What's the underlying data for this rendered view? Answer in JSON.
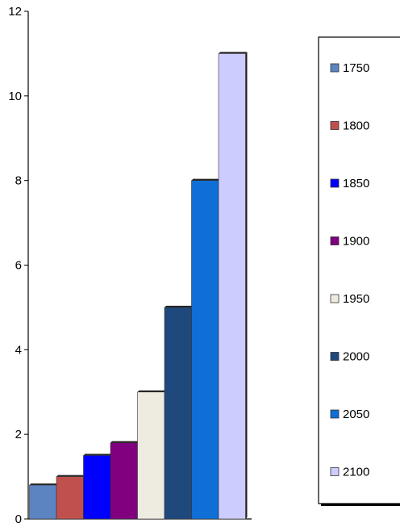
{
  "chart_data": {
    "type": "bar",
    "categories": [
      "1750",
      "1800",
      "1850",
      "1900",
      "1950",
      "2000",
      "2050",
      "2100"
    ],
    "values": [
      0.8,
      1.0,
      1.5,
      1.8,
      3.0,
      5.0,
      8.0,
      11.0
    ],
    "colors": [
      "#5b84c1",
      "#c0504d",
      "#0000ff",
      "#800080",
      "#eeece1",
      "#1f497d",
      "#0f6fd6",
      "#ccccff"
    ],
    "ylim": [
      0,
      12
    ],
    "yticks": [
      "0",
      "2",
      "4",
      "6",
      "8",
      "10",
      "12"
    ],
    "title": "",
    "xlabel": "",
    "ylabel": "",
    "legend": {
      "position": "right",
      "entries": [
        "1750",
        "1800",
        "1850",
        "1900",
        "1950",
        "2000",
        "2050",
        "2100"
      ]
    },
    "grid": false
  }
}
